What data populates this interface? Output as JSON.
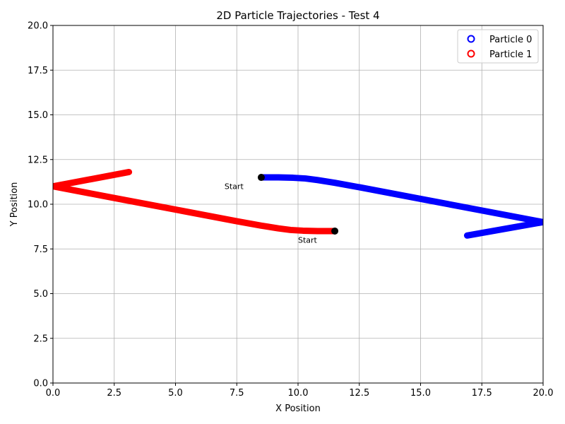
{
  "chart_data": {
    "type": "line",
    "title": "2D Particle Trajectories - Test 4",
    "xlabel": "X Position",
    "ylabel": "Y Position",
    "xlim": [
      0,
      20
    ],
    "ylim": [
      0,
      20
    ],
    "xticks": [
      0,
      2.5,
      5,
      7.5,
      10,
      12.5,
      15,
      17.5,
      20
    ],
    "xtick_labels": [
      "0.0",
      "2.5",
      "5.0",
      "7.5",
      "10.0",
      "12.5",
      "15.0",
      "17.5",
      "20.0"
    ],
    "yticks": [
      0,
      2.5,
      5,
      7.5,
      10,
      12.5,
      15,
      17.5,
      20
    ],
    "ytick_labels": [
      "0.0",
      "2.5",
      "5.0",
      "7.5",
      "10.0",
      "12.5",
      "15.0",
      "17.5",
      "20.0"
    ],
    "grid": true,
    "legend_position": "top-right",
    "series": [
      {
        "name": "Particle 0",
        "color": "#0000ff",
        "points": [
          [
            8.5,
            11.5
          ],
          [
            9.2,
            11.5
          ],
          [
            9.8,
            11.48
          ],
          [
            10.3,
            11.44
          ],
          [
            10.8,
            11.35
          ],
          [
            11.5,
            11.2
          ],
          [
            12.5,
            10.95
          ],
          [
            15.0,
            10.3
          ],
          [
            17.5,
            9.65
          ],
          [
            20.0,
            9.0
          ],
          [
            16.9,
            8.25
          ]
        ],
        "start": [
          8.5,
          11.5
        ]
      },
      {
        "name": "Particle 1",
        "color": "#ff0000",
        "points": [
          [
            11.5,
            8.5
          ],
          [
            10.8,
            8.5
          ],
          [
            10.2,
            8.52
          ],
          [
            9.7,
            8.56
          ],
          [
            9.2,
            8.65
          ],
          [
            8.5,
            8.8
          ],
          [
            7.5,
            9.05
          ],
          [
            5.0,
            9.7
          ],
          [
            2.5,
            10.35
          ],
          [
            0.0,
            11.0
          ],
          [
            3.1,
            11.8
          ]
        ],
        "start": [
          11.5,
          8.5
        ]
      }
    ],
    "annotations": [
      {
        "text": "Start",
        "x": 7.0,
        "y": 11.0,
        "series": 0
      },
      {
        "text": "Start",
        "x": 10.0,
        "y": 8.0,
        "series": 1
      }
    ]
  }
}
